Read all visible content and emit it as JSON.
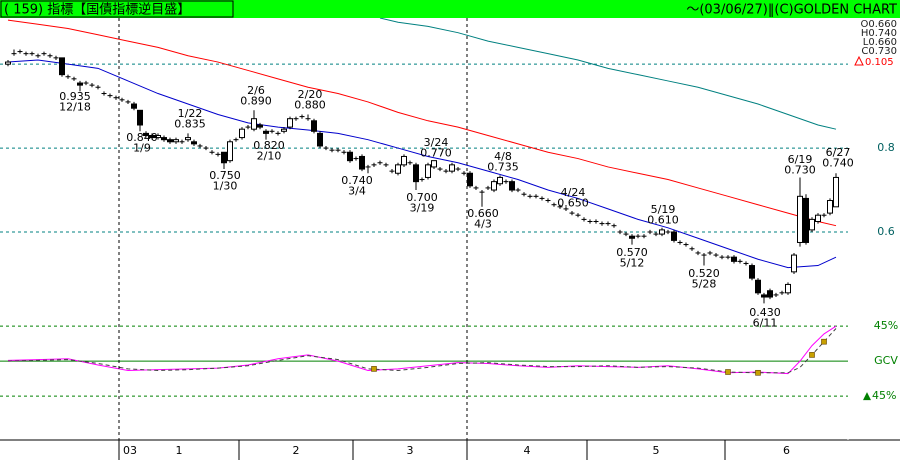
{
  "chart_data": {
    "type": "candlestick",
    "title": "( 159) 指標【国債指標逆目盛】",
    "subtitle": "～(03/06/27)‖(C)GOLDEN CHART",
    "ohlc_labels": [
      "O0.660",
      "H0.740",
      "L0.660",
      "C0.730"
    ],
    "change": "0.105",
    "ylim": [
      0.395,
      1.11
    ],
    "yticks": [
      0.6,
      0.8
    ],
    "gridlines": [
      0.6,
      0.8,
      1
    ],
    "grid": true,
    "candles": [
      [
        1.0,
        1.01,
        0.995,
        1.005
      ],
      [
        1.025,
        1.035,
        1.02,
        1.025
      ],
      [
        1.03,
        1.035,
        1.025,
        1.03
      ],
      [
        1.025,
        1.03,
        1.02,
        1.025
      ],
      [
        1.025,
        1.03,
        1.02,
        1.025
      ],
      [
        1.02,
        1.025,
        1.015,
        1.02
      ],
      [
        1.025,
        1.03,
        1.02,
        1.025
      ],
      [
        1.02,
        1.025,
        1.015,
        1.02
      ],
      [
        1.015,
        1.02,
        1.01,
        1.015
      ],
      [
        1.015,
        1.015,
        0.97,
        0.975
      ],
      [
        0.97,
        0.975,
        0.965,
        0.97
      ],
      [
        0.965,
        0.97,
        0.96,
        0.965
      ],
      [
        0.955,
        0.96,
        0.935,
        0.95
      ],
      [
        0.955,
        0.96,
        0.95,
        0.955
      ],
      [
        0.95,
        0.955,
        0.945,
        0.95
      ],
      [
        0.945,
        0.95,
        0.94,
        0.945
      ],
      [
        0.93,
        0.935,
        0.925,
        0.93
      ],
      [
        0.925,
        0.93,
        0.92,
        0.925
      ],
      [
        0.92,
        0.925,
        0.915,
        0.92
      ],
      [
        0.915,
        0.92,
        0.91,
        0.915
      ],
      [
        0.91,
        0.915,
        0.905,
        0.91
      ],
      [
        0.905,
        0.91,
        0.89,
        0.895
      ],
      [
        0.89,
        0.89,
        0.84,
        0.855
      ],
      [
        0.835,
        0.84,
        0.825,
        0.83
      ],
      [
        0.83,
        0.835,
        0.82,
        0.825
      ],
      [
        0.825,
        0.835,
        0.82,
        0.83
      ],
      [
        0.825,
        0.83,
        0.815,
        0.82
      ],
      [
        0.82,
        0.825,
        0.81,
        0.815
      ],
      [
        0.815,
        0.825,
        0.81,
        0.82
      ],
      [
        0.815,
        0.82,
        0.81,
        0.815
      ],
      [
        0.82,
        0.835,
        0.815,
        0.825
      ],
      [
        0.815,
        0.82,
        0.805,
        0.81
      ],
      [
        0.805,
        0.81,
        0.8,
        0.805
      ],
      [
        0.8,
        0.805,
        0.795,
        0.8
      ],
      [
        0.79,
        0.795,
        0.785,
        0.79
      ],
      [
        0.785,
        0.79,
        0.78,
        0.785
      ],
      [
        0.79,
        0.79,
        0.75,
        0.765
      ],
      [
        0.77,
        0.82,
        0.765,
        0.815
      ],
      [
        0.82,
        0.825,
        0.815,
        0.82
      ],
      [
        0.825,
        0.85,
        0.82,
        0.845
      ],
      [
        0.85,
        0.855,
        0.845,
        0.85
      ],
      [
        0.845,
        0.89,
        0.84,
        0.87
      ],
      [
        0.855,
        0.86,
        0.845,
        0.85
      ],
      [
        0.84,
        0.845,
        0.82,
        0.835
      ],
      [
        0.84,
        0.845,
        0.835,
        0.84
      ],
      [
        0.835,
        0.84,
        0.83,
        0.835
      ],
      [
        0.84,
        0.85,
        0.835,
        0.845
      ],
      [
        0.85,
        0.875,
        0.845,
        0.87
      ],
      [
        0.87,
        0.875,
        0.865,
        0.87
      ],
      [
        0.875,
        0.88,
        0.87,
        0.875
      ],
      [
        0.87,
        0.88,
        0.865,
        0.87
      ],
      [
        0.865,
        0.87,
        0.835,
        0.84
      ],
      [
        0.835,
        0.84,
        0.8,
        0.805
      ],
      [
        0.8,
        0.805,
        0.795,
        0.8
      ],
      [
        0.795,
        0.8,
        0.79,
        0.795
      ],
      [
        0.795,
        0.8,
        0.79,
        0.795
      ],
      [
        0.79,
        0.795,
        0.785,
        0.79
      ],
      [
        0.79,
        0.795,
        0.765,
        0.77
      ],
      [
        0.775,
        0.78,
        0.77,
        0.775
      ],
      [
        0.78,
        0.785,
        0.745,
        0.75
      ],
      [
        0.755,
        0.76,
        0.74,
        0.755
      ],
      [
        0.76,
        0.765,
        0.755,
        0.76
      ],
      [
        0.765,
        0.77,
        0.76,
        0.765
      ],
      [
        0.76,
        0.765,
        0.755,
        0.76
      ],
      [
        0.745,
        0.75,
        0.74,
        0.745
      ],
      [
        0.74,
        0.765,
        0.735,
        0.76
      ],
      [
        0.76,
        0.785,
        0.755,
        0.78
      ],
      [
        0.765,
        0.77,
        0.76,
        0.765
      ],
      [
        0.76,
        0.765,
        0.7,
        0.72
      ],
      [
        0.725,
        0.73,
        0.72,
        0.725
      ],
      [
        0.73,
        0.765,
        0.725,
        0.76
      ],
      [
        0.755,
        0.77,
        0.75,
        0.77
      ],
      [
        0.75,
        0.755,
        0.745,
        0.75
      ],
      [
        0.745,
        0.75,
        0.74,
        0.745
      ],
      [
        0.745,
        0.765,
        0.74,
        0.76
      ],
      [
        0.75,
        0.755,
        0.745,
        0.75
      ],
      [
        0.74,
        0.745,
        0.735,
        0.74
      ],
      [
        0.74,
        0.745,
        0.705,
        0.71
      ],
      [
        0.705,
        0.71,
        0.7,
        0.705
      ],
      [
        0.695,
        0.7,
        0.66,
        0.695
      ],
      [
        0.705,
        0.71,
        0.7,
        0.705
      ],
      [
        0.7,
        0.725,
        0.695,
        0.72
      ],
      [
        0.715,
        0.735,
        0.71,
        0.73
      ],
      [
        0.72,
        0.725,
        0.715,
        0.72
      ],
      [
        0.72,
        0.725,
        0.695,
        0.7
      ],
      [
        0.7,
        0.705,
        0.695,
        0.7
      ],
      [
        0.69,
        0.695,
        0.685,
        0.69
      ],
      [
        0.685,
        0.69,
        0.68,
        0.685
      ],
      [
        0.685,
        0.69,
        0.68,
        0.685
      ],
      [
        0.68,
        0.685,
        0.675,
        0.68
      ],
      [
        0.675,
        0.68,
        0.67,
        0.675
      ],
      [
        0.665,
        0.67,
        0.66,
        0.665
      ],
      [
        0.66,
        0.665,
        0.655,
        0.66
      ],
      [
        0.655,
        0.66,
        0.65,
        0.655
      ],
      [
        0.645,
        0.65,
        0.64,
        0.645
      ],
      [
        0.64,
        0.645,
        0.635,
        0.64
      ],
      [
        0.63,
        0.635,
        0.625,
        0.63
      ],
      [
        0.625,
        0.63,
        0.62,
        0.625
      ],
      [
        0.625,
        0.63,
        0.62,
        0.625
      ],
      [
        0.62,
        0.625,
        0.615,
        0.62
      ],
      [
        0.62,
        0.625,
        0.615,
        0.62
      ],
      [
        0.615,
        0.62,
        0.61,
        0.615
      ],
      [
        0.6,
        0.605,
        0.595,
        0.6
      ],
      [
        0.595,
        0.6,
        0.59,
        0.595
      ],
      [
        0.59,
        0.595,
        0.57,
        0.585
      ],
      [
        0.59,
        0.595,
        0.585,
        0.59
      ],
      [
        0.59,
        0.595,
        0.585,
        0.59
      ],
      [
        0.6,
        0.605,
        0.595,
        0.6
      ],
      [
        0.595,
        0.6,
        0.59,
        0.595
      ],
      [
        0.595,
        0.61,
        0.59,
        0.605
      ],
      [
        0.6,
        0.605,
        0.595,
        0.6
      ],
      [
        0.6,
        0.605,
        0.575,
        0.58
      ],
      [
        0.575,
        0.58,
        0.57,
        0.575
      ],
      [
        0.57,
        0.575,
        0.565,
        0.57
      ],
      [
        0.56,
        0.565,
        0.555,
        0.56
      ],
      [
        0.55,
        0.555,
        0.545,
        0.55
      ],
      [
        0.545,
        0.55,
        0.52,
        0.545
      ],
      [
        0.55,
        0.555,
        0.545,
        0.55
      ],
      [
        0.545,
        0.55,
        0.54,
        0.545
      ],
      [
        0.54,
        0.545,
        0.535,
        0.54
      ],
      [
        0.54,
        0.545,
        0.535,
        0.54
      ],
      [
        0.54,
        0.545,
        0.525,
        0.53
      ],
      [
        0.53,
        0.535,
        0.525,
        0.53
      ],
      [
        0.525,
        0.53,
        0.52,
        0.525
      ],
      [
        0.52,
        0.525,
        0.485,
        0.49
      ],
      [
        0.485,
        0.49,
        0.45,
        0.455
      ],
      [
        0.45,
        0.455,
        0.43,
        0.445
      ],
      [
        0.46,
        0.465,
        0.44,
        0.445
      ],
      [
        0.45,
        0.455,
        0.445,
        0.45
      ],
      [
        0.455,
        0.46,
        0.45,
        0.455
      ],
      [
        0.455,
        0.48,
        0.45,
        0.475
      ],
      [
        0.505,
        0.55,
        0.5,
        0.545
      ],
      [
        0.575,
        0.73,
        0.565,
        0.685
      ],
      [
        0.68,
        0.69,
        0.57,
        0.575
      ],
      [
        0.605,
        0.635,
        0.6,
        0.63
      ],
      [
        0.625,
        0.645,
        0.62,
        0.64
      ],
      [
        0.64,
        0.645,
        0.635,
        0.64
      ],
      [
        0.645,
        0.68,
        0.64,
        0.675
      ],
      [
        0.66,
        0.74,
        0.66,
        0.73
      ]
    ],
    "series": [
      {
        "color": "#ff0000",
        "x": [
          0,
          5,
          10,
          15,
          20,
          25,
          30,
          35,
          40,
          45,
          50,
          55,
          60,
          65,
          70,
          75,
          80,
          85,
          90,
          95,
          100,
          105,
          110,
          115,
          120,
          125,
          130,
          135,
          138
        ],
        "values": [
          1.105,
          1.095,
          1.085,
          1.07,
          1.055,
          1.04,
          1.02,
          1.005,
          0.985,
          0.965,
          0.945,
          0.93,
          0.91,
          0.885,
          0.865,
          0.85,
          0.83,
          0.81,
          0.79,
          0.775,
          0.755,
          0.74,
          0.725,
          0.705,
          0.685,
          0.665,
          0.645,
          0.625,
          0.615
        ]
      },
      {
        "color": "#0000cc",
        "x": [
          0,
          5,
          10,
          15,
          20,
          25,
          30,
          35,
          40,
          45,
          50,
          55,
          60,
          65,
          70,
          75,
          80,
          85,
          90,
          95,
          100,
          105,
          110,
          115,
          120,
          125,
          130,
          135,
          138
        ],
        "values": [
          1.005,
          1.01,
          1.0,
          0.99,
          0.96,
          0.93,
          0.905,
          0.88,
          0.86,
          0.85,
          0.843,
          0.835,
          0.82,
          0.8,
          0.78,
          0.765,
          0.745,
          0.725,
          0.7,
          0.68,
          0.655,
          0.63,
          0.61,
          0.585,
          0.56,
          0.535,
          0.515,
          0.52,
          0.54
        ]
      },
      {
        "color": "#008080",
        "x": [
          62,
          65,
          70,
          75,
          80,
          85,
          90,
          95,
          100,
          105,
          110,
          115,
          120,
          125,
          130,
          135,
          138
        ],
        "values": [
          1.11,
          1.1,
          1.09,
          1.075,
          1.055,
          1.04,
          1.025,
          1.01,
          0.99,
          0.975,
          0.96,
          0.945,
          0.925,
          0.905,
          0.88,
          0.855,
          0.845
        ]
      }
    ],
    "annotations": [
      {
        "date": "12/18",
        "value": "0.935"
      },
      {
        "date": "1/9",
        "value": "0.840"
      },
      {
        "date": "1/22",
        "value": "0.835"
      },
      {
        "date": "1/30",
        "value": "0.750"
      },
      {
        "date": "2/6",
        "value": "0.890"
      },
      {
        "date": "2/10",
        "value": "0.820"
      },
      {
        "date": "2/20",
        "value": "0.880"
      },
      {
        "date": "3/4",
        "value": "0.740"
      },
      {
        "date": "3/19",
        "value": "0.700"
      },
      {
        "date": "3/24",
        "value": "0.770"
      },
      {
        "date": "4/3",
        "value": "0.660"
      },
      {
        "date": "4/8",
        "value": "0.735"
      },
      {
        "date": "4/24",
        "value": "0.650"
      },
      {
        "date": "5/12",
        "value": "0.570"
      },
      {
        "date": "5/19",
        "value": "0.610"
      },
      {
        "date": "5/28",
        "value": "0.520"
      },
      {
        "date": "6/11",
        "value": "0.430"
      },
      {
        "date": "6/19",
        "value": "0.730"
      },
      {
        "date": "6/27",
        "value": "0.740"
      }
    ],
    "xticks": [
      19,
      39,
      58,
      77,
      97,
      120
    ],
    "year_label": "03",
    "month_labels": [
      "1",
      "2",
      "3",
      "4",
      "5",
      "6"
    ],
    "oscillator": {
      "ylim": [
        -101.5,
        55.5
      ],
      "yticks": [
        {
          "value": 45,
          "label": "45%"
        },
        {
          "value": 0,
          "label": "GCV"
        },
        {
          "value": -45,
          "label": "45%"
        }
      ],
      "series": [
        {
          "color": "#ff00ff",
          "x": [
            0,
            5,
            10,
            15,
            20,
            25,
            30,
            35,
            40,
            45,
            50,
            55,
            60,
            65,
            70,
            75,
            80,
            85,
            90,
            95,
            100,
            105,
            110,
            115,
            120,
            125,
            130,
            132,
            134,
            136,
            138
          ],
          "values": [
            1,
            2,
            3,
            -5,
            -12,
            -11,
            -10,
            -9,
            -5,
            3,
            8,
            0,
            -12,
            -10,
            -6,
            -2,
            -3,
            -6,
            -8,
            -6,
            -7,
            -8,
            -6,
            -10,
            -15,
            -14,
            -16,
            0,
            20,
            35,
            45
          ]
        },
        {
          "color": "#404040",
          "dashed": true,
          "x": [
            0,
            5,
            10,
            15,
            20,
            25,
            30,
            35,
            40,
            45,
            50,
            55,
            60,
            65,
            70,
            75,
            80,
            85,
            90,
            95,
            100,
            105,
            110,
            115,
            120,
            125,
            130,
            132,
            134,
            136,
            138
          ],
          "values": [
            0,
            1,
            2,
            -3,
            -10,
            -12,
            -11,
            -9,
            -6,
            1,
            7,
            2,
            -10,
            -12,
            -8,
            -3,
            -2,
            -5,
            -7,
            -7,
            -6,
            -8,
            -7,
            -9,
            -14,
            -15,
            -15,
            -8,
            8,
            25,
            42
          ]
        }
      ],
      "markers": {
        "color": "#c8a000",
        "x": [
          61,
          120,
          125,
          134,
          136
        ],
        "values": [
          -10,
          -14,
          -15,
          8,
          25
        ]
      }
    }
  }
}
